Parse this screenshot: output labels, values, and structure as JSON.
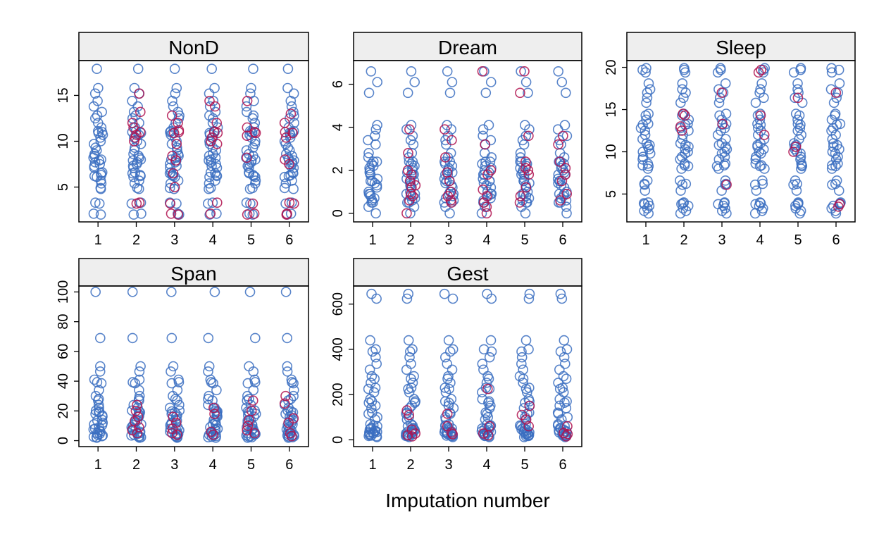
{
  "xlabel": "Imputation number",
  "colors": {
    "observed": "#3b6fc1",
    "imputed": "#b0124f",
    "strip": "#eeeeee"
  },
  "chart_data": [
    {
      "type": "scatter",
      "panel": "NonD",
      "xlim": [
        0.5,
        6.5
      ],
      "ylim": [
        1.2,
        18.8
      ],
      "xticks": [
        1,
        2,
        3,
        4,
        5,
        6
      ],
      "yticks": [
        5,
        10,
        15
      ],
      "grid": false,
      "observed": [
        17.9,
        15.8,
        15.2,
        14.4,
        13.8,
        13.2,
        12.8,
        12.5,
        12.0,
        11.5,
        11.1,
        11.0,
        10.9,
        10.7,
        10.4,
        10.0,
        9.7,
        9.3,
        9.0,
        8.6,
        8.4,
        8.2,
        8.0,
        7.9,
        7.7,
        7.5,
        7.3,
        7.1,
        6.6,
        6.5,
        6.3,
        6.2,
        6.1,
        5.7,
        5.4,
        4.9,
        4.8,
        3.3,
        3.2,
        2.1,
        2.0
      ],
      "imputed": {
        "2": [
          15.2,
          13.2,
          12.0,
          11.5,
          11.0,
          10.7,
          10.4,
          10.0,
          3.3,
          3.2
        ],
        "3": [
          12.8,
          12.0,
          11.2,
          11.0,
          10.9,
          9.7,
          8.4,
          7.9,
          6.5,
          5.0,
          3.2,
          2.1,
          2.0
        ],
        "4": [
          14.4,
          13.8,
          12.0,
          11.0,
          10.9,
          10.4,
          10.0,
          9.7,
          3.3,
          2.1
        ],
        "5": [
          14.4,
          11.5,
          11.0,
          10.9,
          10.6,
          8.2,
          3.2,
          2.1,
          2.0
        ],
        "6": [
          13.0,
          12.0,
          11.0,
          10.9,
          10.4,
          8.0,
          7.5,
          3.3,
          3.2,
          2.1,
          2.0
        ]
      }
    },
    {
      "type": "scatter",
      "panel": "Dream",
      "xlim": [
        0.5,
        6.5
      ],
      "ylim": [
        -0.4,
        7.1
      ],
      "xticks": [
        1,
        2,
        3,
        4,
        5,
        6
      ],
      "yticks": [
        0,
        2,
        4,
        6
      ],
      "grid": false,
      "observed": [
        6.6,
        6.1,
        5.6,
        4.1,
        3.9,
        3.6,
        3.4,
        3.2,
        2.8,
        2.6,
        2.4,
        2.4,
        2.3,
        2.2,
        2.1,
        2.0,
        1.9,
        1.8,
        1.8,
        1.6,
        1.5,
        1.5,
        1.4,
        1.3,
        1.2,
        1.0,
        0.9,
        0.9,
        0.8,
        0.7,
        0.6,
        0.5,
        0.5,
        0.3,
        0.0
      ],
      "imputed": {
        "2": [
          3.9,
          2.8,
          2.0,
          1.8,
          1.5,
          1.3,
          1.2,
          0.9,
          0.8,
          0.6,
          0.0
        ],
        "3": [
          3.9,
          3.4,
          2.6,
          1.9,
          1.5,
          1.0,
          0.8,
          0.6,
          0.5
        ],
        "4": [
          6.6,
          3.2,
          2.0,
          1.8,
          1.1,
          0.8,
          0.5,
          0.3,
          0.0
        ],
        "5": [
          6.6,
          5.6,
          3.6,
          2.4,
          2.1,
          2.0,
          1.8,
          1.2,
          0.8,
          0.5
        ],
        "6": [
          3.6,
          3.2,
          2.4,
          2.1,
          1.8,
          1.5,
          0.9,
          0.6
        ]
      }
    },
    {
      "type": "scatter",
      "panel": "Sleep",
      "xlim": [
        0.5,
        6.5
      ],
      "ylim": [
        1.7,
        20.8
      ],
      "xticks": [
        1,
        2,
        3,
        4,
        5,
        6
      ],
      "yticks": [
        5,
        10,
        15,
        20
      ],
      "grid": false,
      "observed": [
        19.9,
        19.7,
        19.4,
        18.1,
        17.4,
        17.0,
        16.4,
        15.8,
        14.5,
        14.3,
        13.8,
        13.3,
        13.2,
        12.8,
        12.5,
        12.0,
        11.5,
        11.0,
        10.8,
        10.6,
        10.3,
        10.0,
        9.8,
        9.4,
        9.1,
        8.6,
        8.4,
        8.3,
        8.0,
        6.6,
        6.2,
        6.1,
        5.4,
        4.0,
        3.9,
        3.8,
        3.6,
        3.3,
        3.0,
        2.7
      ],
      "imputed": {
        "2": [
          14.5,
          14.3,
          13.0,
          12.5
        ],
        "3": [
          17.0,
          13.3,
          6.1
        ],
        "4": [
          19.7,
          19.4,
          14.3,
          12.0
        ],
        "5": [
          16.4,
          10.6,
          10.0
        ],
        "6": [
          17.0,
          3.8,
          3.5
        ]
      }
    },
    {
      "type": "scatter",
      "panel": "Span",
      "xlim": [
        0.5,
        6.5
      ],
      "ylim": [
        -4,
        104
      ],
      "xticks": [
        1,
        2,
        3,
        4,
        5,
        6
      ],
      "yticks": [
        0,
        20,
        40,
        60,
        80,
        100
      ],
      "grid": false,
      "observed": [
        100,
        69,
        50,
        46.5,
        41,
        39.3,
        38.6,
        34,
        30,
        28,
        27,
        24,
        22.1,
        20.2,
        19.7,
        19,
        18,
        17,
        16.2,
        14,
        13.5,
        12,
        11,
        10.4,
        9,
        8,
        7.6,
        7,
        6,
        5,
        4.5,
        4,
        3.5,
        3,
        2.6,
        2.3,
        2
      ],
      "imputed": {
        "2": [
          24,
          20,
          16,
          13,
          9,
          7,
          5
        ],
        "3": [
          16,
          12,
          8,
          5,
          4
        ],
        "4": [
          22,
          18,
          6,
          4
        ],
        "5": [
          27,
          20,
          14,
          10,
          7,
          5
        ],
        "6": [
          30,
          25,
          15,
          12,
          5,
          3
        ]
      }
    },
    {
      "type": "scatter",
      "panel": "Gest",
      "xlim": [
        0.5,
        6.5
      ],
      "ylim": [
        -30,
        680
      ],
      "xticks": [
        1,
        2,
        3,
        4,
        5,
        6
      ],
      "yticks": [
        0,
        200,
        400,
        600
      ],
      "grid": false,
      "observed": [
        645,
        624,
        440,
        400,
        390,
        365,
        336,
        310,
        281,
        270,
        252,
        230,
        225,
        210,
        180,
        170,
        164,
        151,
        140,
        120,
        115,
        100,
        90,
        69,
        63,
        60,
        52,
        50,
        46,
        42,
        38,
        35,
        33,
        30,
        28,
        25,
        21,
        19,
        17,
        16,
        12
      ],
      "imputed": {
        "2": [
          130,
          110,
          45,
          28,
          20,
          15
        ],
        "3": [
          115,
          60,
          33,
          25
        ],
        "4": [
          225,
          60,
          28,
          20
        ],
        "5": [
          150,
          110,
          90,
          60
        ],
        "6": [
          60,
          30,
          25,
          15
        ]
      }
    }
  ]
}
